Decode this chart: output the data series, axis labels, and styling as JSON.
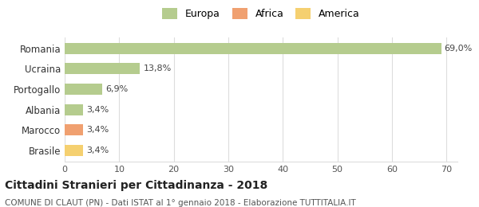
{
  "categories": [
    "Romania",
    "Ucraina",
    "Portogallo",
    "Albania",
    "Marocco",
    "Brasile"
  ],
  "values": [
    69.0,
    13.8,
    6.9,
    3.4,
    3.4,
    3.4
  ],
  "labels": [
    "69,0%",
    "13,8%",
    "6,9%",
    "3,4%",
    "3,4%",
    "3,4%"
  ],
  "bar_colors": [
    "#b5cc8e",
    "#b5cc8e",
    "#b5cc8e",
    "#b5cc8e",
    "#f0a070",
    "#f5d070"
  ],
  "legend_items": [
    {
      "label": "Europa",
      "color": "#b5cc8e"
    },
    {
      "label": "Africa",
      "color": "#f0a070"
    },
    {
      "label": "America",
      "color": "#f5d070"
    }
  ],
  "xlim": [
    0,
    72
  ],
  "xticks": [
    0,
    10,
    20,
    30,
    40,
    50,
    60,
    70
  ],
  "title": "Cittadini Stranieri per Cittadinanza - 2018",
  "subtitle": "COMUNE DI CLAUT (PN) - Dati ISTAT al 1° gennaio 2018 - Elaborazione TUTTITALIA.IT",
  "title_fontsize": 10,
  "subtitle_fontsize": 7.5,
  "background_color": "#ffffff",
  "grid_color": "#dddddd",
  "bar_height": 0.55
}
